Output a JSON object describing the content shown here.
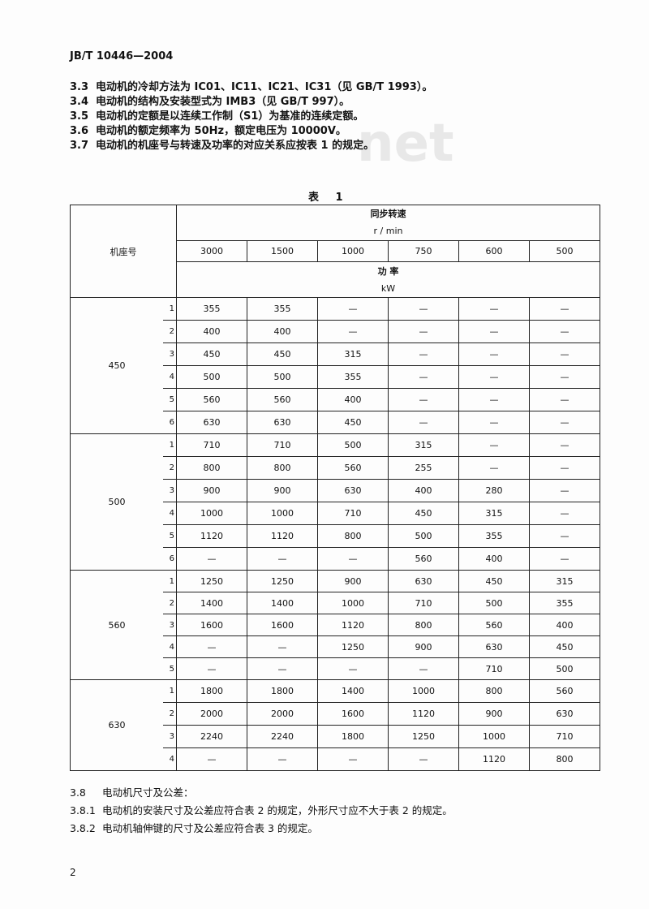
{
  "header": "JB/T 10446—2004",
  "watermark": "net",
  "clauses": [
    {
      "num": "3.3",
      "text": "电动机的冷却方法为 IC01、IC11、IC21、IC31（见 GB/T 1993）。"
    },
    {
      "num": "3.4",
      "text": "电动机的结构及安装型式为 IMB3（见 GB/T 997）。"
    },
    {
      "num": "3.5",
      "text": "电动机的定额是以连续工作制（S1）为基准的连续定额。"
    },
    {
      "num": "3.6",
      "text": "电动机的额定频率为 50Hz，额定电压为 10000V。"
    },
    {
      "num": "3.7",
      "text": "电动机的机座号与转速及功率的对应关系应按表 1 的规定。"
    }
  ],
  "table": {
    "caption": "表 1",
    "frame_header": "机座号",
    "speed_header": "同步转速",
    "speed_unit": "r / min",
    "speeds": [
      "3000",
      "1500",
      "1000",
      "750",
      "600",
      "500"
    ],
    "power_header": "功 率",
    "power_unit": "kW",
    "groups": [
      {
        "frame": "450",
        "rows": [
          {
            "n": "1",
            "v": [
              "355",
              "355",
              "—",
              "—",
              "—",
              "—"
            ]
          },
          {
            "n": "2",
            "v": [
              "400",
              "400",
              "—",
              "—",
              "—",
              "—"
            ]
          },
          {
            "n": "3",
            "v": [
              "450",
              "450",
              "315",
              "—",
              "—",
              "—"
            ]
          },
          {
            "n": "4",
            "v": [
              "500",
              "500",
              "355",
              "—",
              "—",
              "—"
            ]
          },
          {
            "n": "5",
            "v": [
              "560",
              "560",
              "400",
              "—",
              "—",
              "—"
            ]
          },
          {
            "n": "6",
            "v": [
              "630",
              "630",
              "450",
              "—",
              "—",
              "—"
            ]
          }
        ]
      },
      {
        "frame": "500",
        "rows": [
          {
            "n": "1",
            "v": [
              "710",
              "710",
              "500",
              "315",
              "—",
              "—"
            ]
          },
          {
            "n": "2",
            "v": [
              "800",
              "800",
              "560",
              "255",
              "—",
              "—"
            ]
          },
          {
            "n": "3",
            "v": [
              "900",
              "900",
              "630",
              "400",
              "280",
              "—"
            ]
          },
          {
            "n": "4",
            "v": [
              "1000",
              "1000",
              "710",
              "450",
              "315",
              "—"
            ]
          },
          {
            "n": "5",
            "v": [
              "1120",
              "1120",
              "800",
              "500",
              "355",
              "—"
            ]
          },
          {
            "n": "6",
            "v": [
              "—",
              "—",
              "—",
              "560",
              "400",
              "—"
            ]
          }
        ]
      },
      {
        "frame": "560",
        "rows": [
          {
            "n": "1",
            "v": [
              "1250",
              "1250",
              "900",
              "630",
              "450",
              "315"
            ]
          },
          {
            "n": "2",
            "v": [
              "1400",
              "1400",
              "1000",
              "710",
              "500",
              "355"
            ]
          },
          {
            "n": "3",
            "v": [
              "1600",
              "1600",
              "1120",
              "800",
              "560",
              "400"
            ]
          },
          {
            "n": "4",
            "v": [
              "—",
              "—",
              "1250",
              "900",
              "630",
              "450"
            ]
          },
          {
            "n": "5",
            "v": [
              "—",
              "—",
              "—",
              "—",
              "710",
              "500"
            ]
          }
        ]
      },
      {
        "frame": "630",
        "rows": [
          {
            "n": "1",
            "v": [
              "1800",
              "1800",
              "1400",
              "1000",
              "800",
              "560"
            ]
          },
          {
            "n": "2",
            "v": [
              "2000",
              "2000",
              "1600",
              "1120",
              "900",
              "630"
            ]
          },
          {
            "n": "3",
            "v": [
              "2240",
              "2240",
              "1800",
              "1250",
              "1000",
              "710"
            ]
          },
          {
            "n": "4",
            "v": [
              "—",
              "—",
              "—",
              "—",
              "1120",
              "800"
            ]
          }
        ]
      }
    ]
  },
  "clauses2": [
    {
      "num": "3.8",
      "text": "电动机尺寸及公差："
    },
    {
      "num": "3.8.1",
      "text": "电动机的安装尺寸及公差应符合表 2 的规定，外形尺寸应不大于表 2 的规定。"
    },
    {
      "num": "3.8.2",
      "text": "电动机轴伸键的尺寸及公差应符合表 3 的规定。"
    }
  ],
  "page_number": "2"
}
